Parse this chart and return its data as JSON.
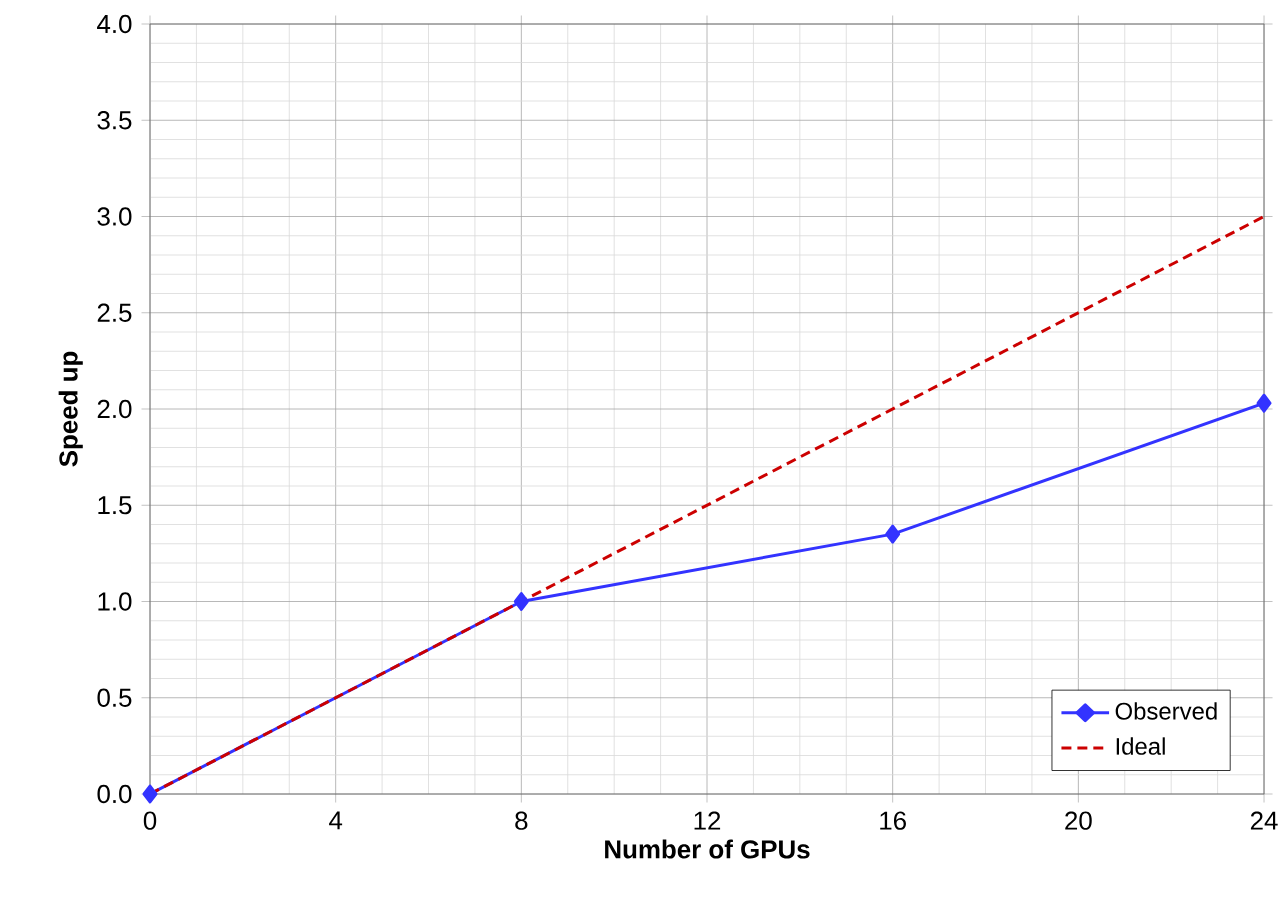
{
  "chart_data": {
    "type": "line",
    "xlabel": "Number of GPUs",
    "ylabel": "Speed up",
    "xlim": [
      0,
      24
    ],
    "ylim": [
      0,
      4
    ],
    "xticks": [
      0,
      4,
      8,
      12,
      16,
      20,
      24
    ],
    "yticks": [
      {
        "value": 0,
        "label": "0.0"
      },
      {
        "value": 0.5,
        "label": "0.5"
      },
      {
        "value": 1,
        "label": "1.0"
      },
      {
        "value": 1.5,
        "label": "1.5"
      },
      {
        "value": 2,
        "label": "2.0"
      },
      {
        "value": 2.5,
        "label": "2.5"
      },
      {
        "value": 3,
        "label": "3.0"
      },
      {
        "value": 3.5,
        "label": "3.5"
      },
      {
        "value": 4,
        "label": "4.0"
      }
    ],
    "grid": true,
    "legend": "bottom right",
    "series": [
      {
        "name": "Observed",
        "color": "#3333ff",
        "x": [
          0,
          8,
          16,
          24
        ],
        "values": [
          0,
          1.0,
          1.35,
          2.03
        ],
        "marker": "diamond",
        "line_style": "solid"
      },
      {
        "name": "Ideal",
        "color": "#cc0000",
        "x": [
          0,
          24
        ],
        "values": [
          0,
          3.0
        ],
        "marker": "none",
        "line_style": "dashed"
      }
    ]
  }
}
